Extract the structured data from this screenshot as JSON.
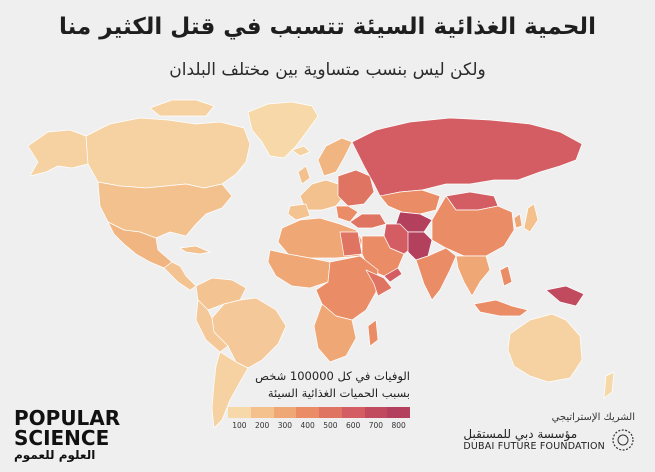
{
  "title": "الحمية الغذائية السيئة تتسبب في قتل الكثير منا",
  "subtitle": "ولكن ليس بنسب متساوية بين مختلف البلدان",
  "legend": {
    "title_line1": "الوفيات في كل 100000 شخص",
    "title_line2": "بسبب الحميات الغذائية السيئة",
    "ticks": [
      "100",
      "200",
      "300",
      "400",
      "500",
      "600",
      "700",
      "800"
    ],
    "colors": [
      "#f7d9a9",
      "#f4c08c",
      "#f0a776",
      "#ea8d66",
      "#e07463",
      "#d35d62",
      "#c24a5f",
      "#b3405d"
    ]
  },
  "map_colors": {
    "ocean": "#efefef",
    "border": "#ffffff"
  },
  "logo_left": {
    "line1": "POPULAR",
    "line2": "SCIENCE",
    "line3": "العلوم للعموم"
  },
  "logo_right": {
    "label": "الشريك الإستراتيجي",
    "arabic": "مؤسسة دبي للمستقبل",
    "english": "DUBAI FUTURE FOUNDATION"
  }
}
